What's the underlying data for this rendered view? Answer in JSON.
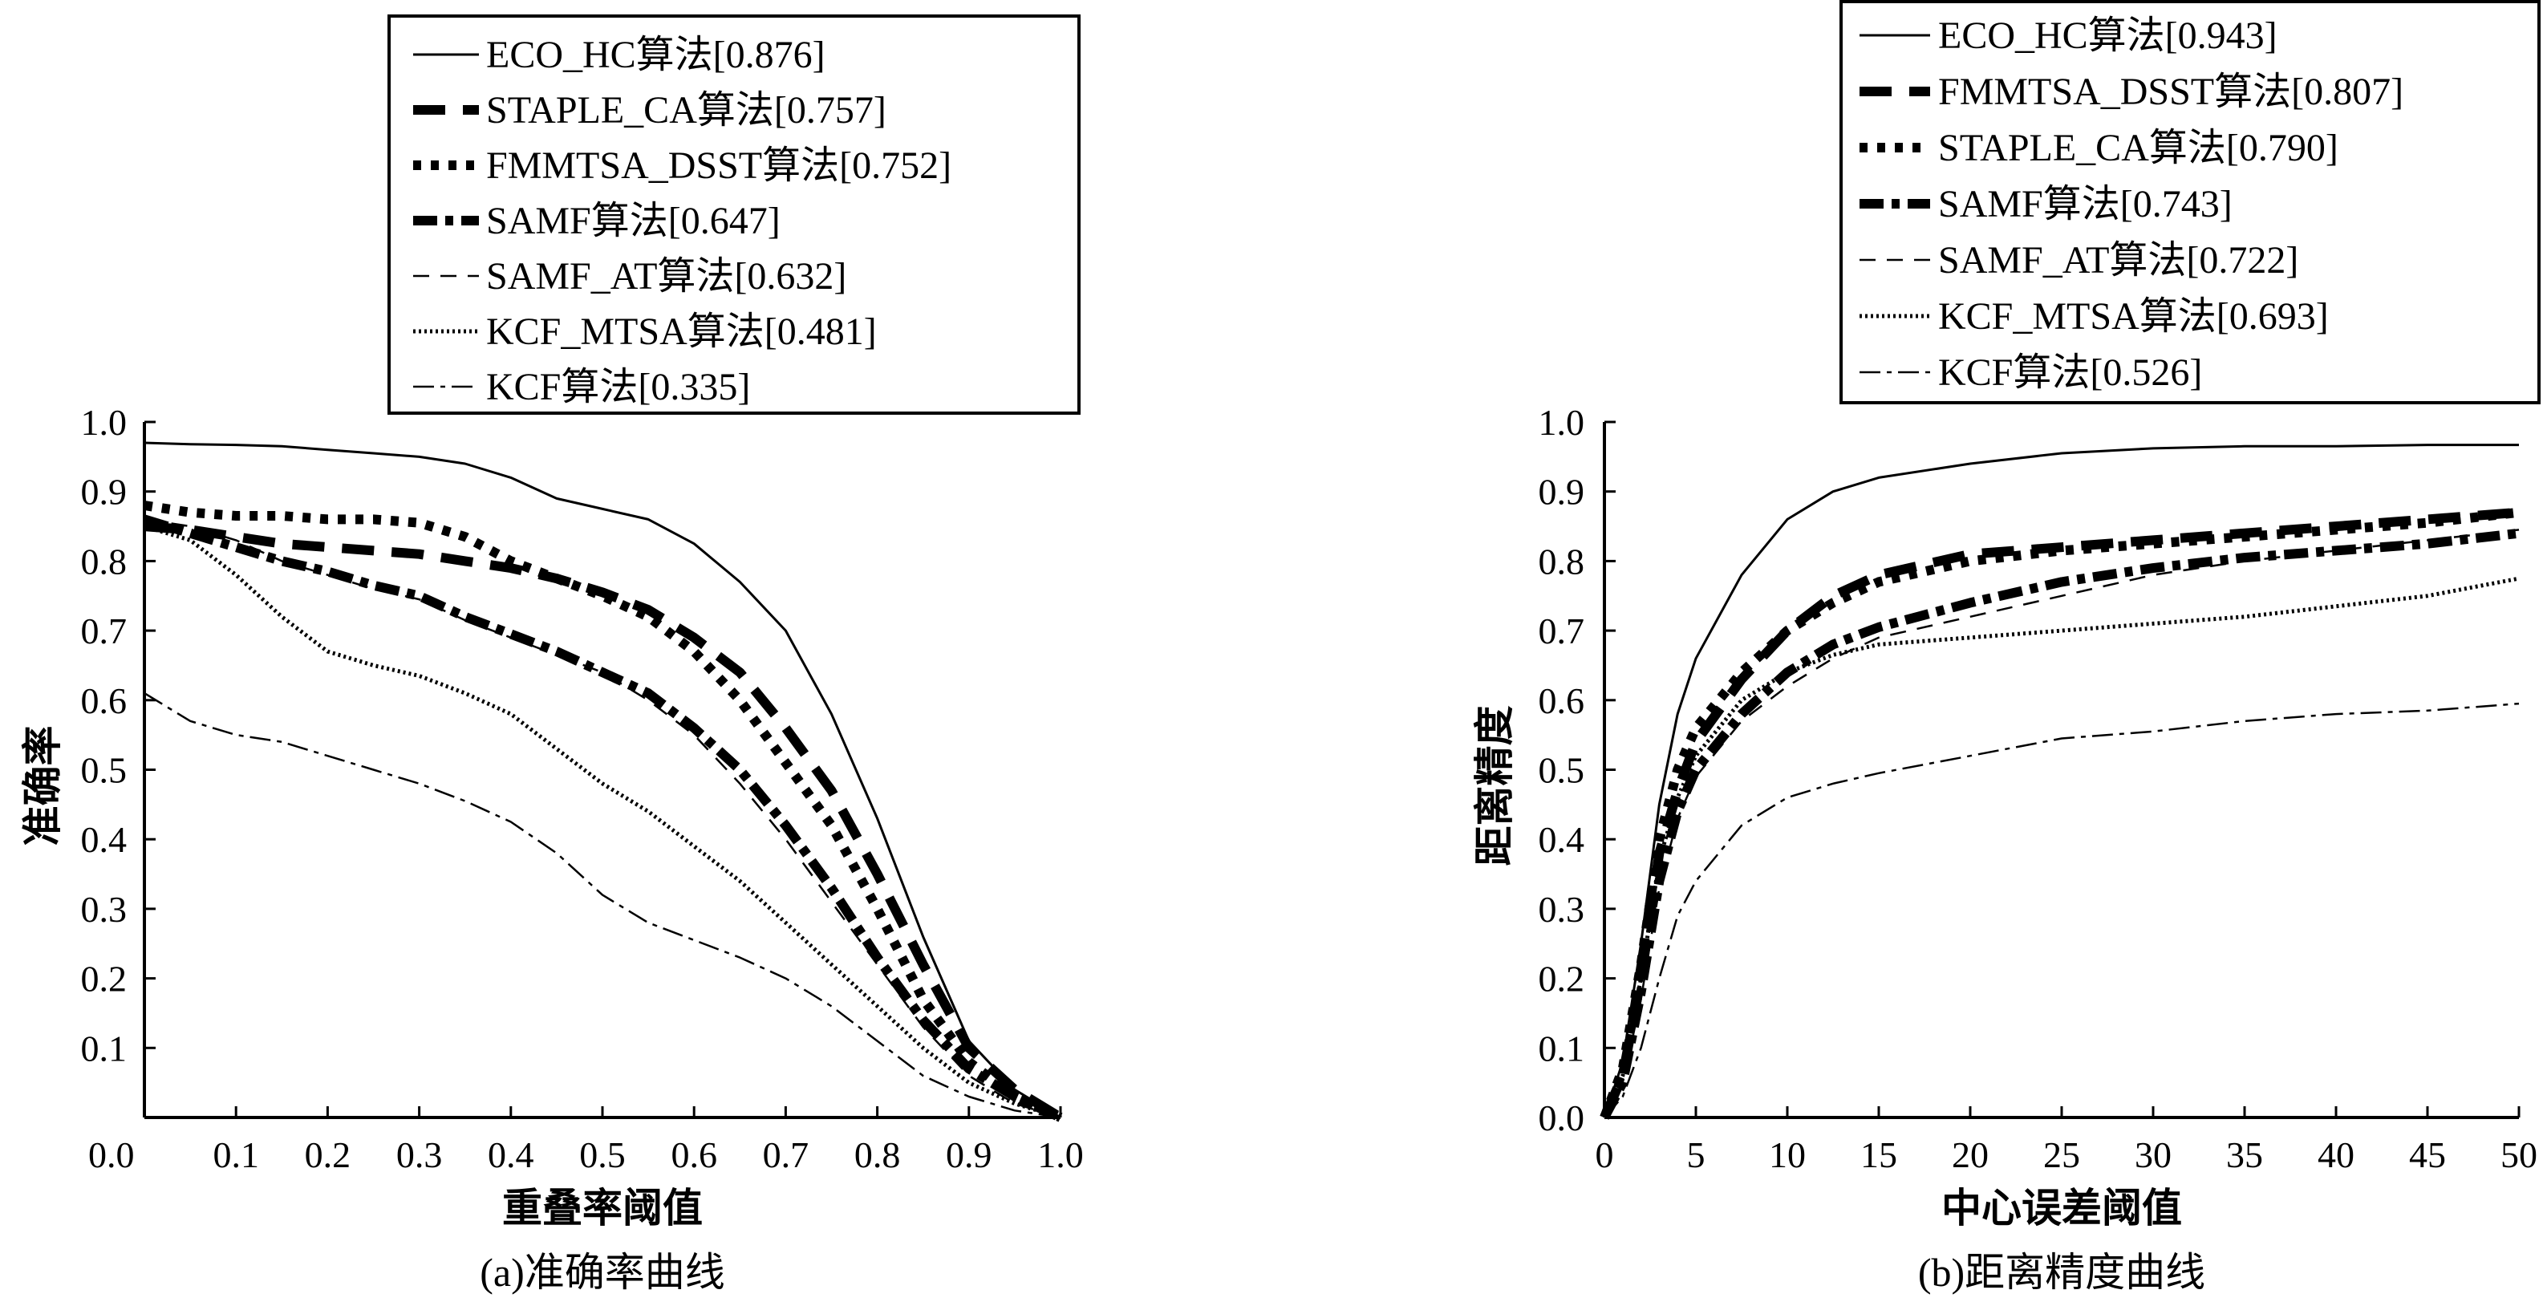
{
  "chart_data": [
    {
      "type": "line",
      "caption": "(a)准确率曲线",
      "xlabel": "重叠率阈值",
      "ylabel": "准确率",
      "xlim": [
        0,
        1.0
      ],
      "ylim": [
        0,
        1.0
      ],
      "xticks": [
        "0.0",
        "0.1",
        "0.2",
        "0.3",
        "0.4",
        "0.5",
        "0.6",
        "0.7",
        "0.8",
        "0.9",
        "1.0"
      ],
      "yticks": [
        "0.1",
        "0.2",
        "0.3",
        "0.4",
        "0.5",
        "0.6",
        "0.7",
        "0.8",
        "0.9",
        "1.0"
      ],
      "grid": false,
      "legend_position": "top-right",
      "x": [
        0,
        0.05,
        0.1,
        0.15,
        0.2,
        0.25,
        0.3,
        0.35,
        0.4,
        0.45,
        0.5,
        0.55,
        0.6,
        0.65,
        0.7,
        0.75,
        0.8,
        0.85,
        0.9,
        0.95,
        1.0
      ],
      "series": [
        {
          "name": "ECO_HC算法[0.876]",
          "values": [
            0.97,
            0.968,
            0.967,
            0.965,
            0.96,
            0.955,
            0.95,
            0.94,
            0.92,
            0.89,
            0.875,
            0.86,
            0.825,
            0.77,
            0.7,
            0.58,
            0.43,
            0.26,
            0.11,
            0.04,
            0.0
          ]
        },
        {
          "name": "STAPLE_CA算法[0.757]",
          "values": [
            0.85,
            0.845,
            0.835,
            0.825,
            0.82,
            0.815,
            0.81,
            0.8,
            0.79,
            0.775,
            0.755,
            0.73,
            0.69,
            0.64,
            0.56,
            0.47,
            0.35,
            0.22,
            0.1,
            0.04,
            0.0
          ]
        },
        {
          "name": "FMMTSA_DSST算法[0.752]",
          "values": [
            0.88,
            0.87,
            0.865,
            0.865,
            0.86,
            0.86,
            0.855,
            0.835,
            0.8,
            0.775,
            0.75,
            0.72,
            0.67,
            0.6,
            0.51,
            0.42,
            0.3,
            0.17,
            0.08,
            0.03,
            0.0
          ]
        },
        {
          "name": "SAMF算法[0.647]",
          "values": [
            0.86,
            0.84,
            0.82,
            0.8,
            0.785,
            0.765,
            0.75,
            0.72,
            0.695,
            0.67,
            0.64,
            0.61,
            0.56,
            0.5,
            0.42,
            0.33,
            0.23,
            0.14,
            0.07,
            0.03,
            0.0
          ]
        },
        {
          "name": "SAMF_AT算法[0.632]",
          "values": [
            0.86,
            0.85,
            0.83,
            0.8,
            0.78,
            0.76,
            0.745,
            0.715,
            0.69,
            0.665,
            0.64,
            0.6,
            0.55,
            0.48,
            0.4,
            0.31,
            0.22,
            0.13,
            0.06,
            0.02,
            0.0
          ]
        },
        {
          "name": "KCF_MTSA算法[0.481]",
          "values": [
            0.85,
            0.83,
            0.78,
            0.72,
            0.67,
            0.65,
            0.635,
            0.61,
            0.58,
            0.53,
            0.48,
            0.44,
            0.39,
            0.34,
            0.28,
            0.22,
            0.16,
            0.1,
            0.05,
            0.02,
            0.0
          ]
        },
        {
          "name": "KCF算法[0.335]",
          "values": [
            0.61,
            0.57,
            0.55,
            0.54,
            0.52,
            0.5,
            0.48,
            0.455,
            0.425,
            0.38,
            0.32,
            0.28,
            0.255,
            0.23,
            0.2,
            0.16,
            0.11,
            0.06,
            0.03,
            0.01,
            0.0
          ]
        }
      ]
    },
    {
      "type": "line",
      "caption": "(b)距离精度曲线",
      "xlabel": "中心误差阈值",
      "ylabel": "距离精度",
      "xlim": [
        0,
        50
      ],
      "ylim": [
        0,
        1.0
      ],
      "xticks": [
        "0",
        "5",
        "10",
        "15",
        "20",
        "25",
        "30",
        "35",
        "40",
        "45",
        "50"
      ],
      "yticks": [
        "0.0",
        "0.1",
        "0.2",
        "0.3",
        "0.4",
        "0.5",
        "0.6",
        "0.7",
        "0.8",
        "0.9",
        "1.0"
      ],
      "grid": false,
      "legend_position": "top-right",
      "x": [
        0,
        1,
        2,
        3,
        4,
        5,
        7.5,
        10,
        12.5,
        15,
        20,
        25,
        30,
        35,
        40,
        45,
        50
      ],
      "series": [
        {
          "name": "ECO_HC算法[0.943]",
          "values": [
            0,
            0.08,
            0.25,
            0.45,
            0.58,
            0.66,
            0.78,
            0.86,
            0.9,
            0.92,
            0.94,
            0.955,
            0.962,
            0.965,
            0.965,
            0.967,
            0.967
          ]
        },
        {
          "name": "FMMTSA_DSST算法[0.807]",
          "values": [
            0,
            0.06,
            0.2,
            0.38,
            0.47,
            0.54,
            0.63,
            0.7,
            0.75,
            0.78,
            0.81,
            0.82,
            0.83,
            0.84,
            0.85,
            0.86,
            0.87
          ]
        },
        {
          "name": "STAPLE_CA算法[0.790]",
          "values": [
            0,
            0.07,
            0.22,
            0.4,
            0.5,
            0.56,
            0.64,
            0.7,
            0.74,
            0.77,
            0.8,
            0.815,
            0.825,
            0.835,
            0.845,
            0.855,
            0.87
          ]
        },
        {
          "name": "SAMF算法[0.743]",
          "values": [
            0,
            0.05,
            0.18,
            0.34,
            0.44,
            0.5,
            0.58,
            0.64,
            0.68,
            0.705,
            0.74,
            0.77,
            0.79,
            0.805,
            0.815,
            0.825,
            0.84
          ]
        },
        {
          "name": "SAMF_AT算法[0.722]",
          "values": [
            0,
            0.05,
            0.17,
            0.33,
            0.43,
            0.49,
            0.57,
            0.62,
            0.66,
            0.69,
            0.72,
            0.75,
            0.78,
            0.8,
            0.815,
            0.83,
            0.845
          ]
        },
        {
          "name": "KCF_MTSA算法[0.693]",
          "values": [
            0,
            0.06,
            0.2,
            0.37,
            0.46,
            0.52,
            0.6,
            0.64,
            0.665,
            0.68,
            0.69,
            0.7,
            0.71,
            0.72,
            0.735,
            0.75,
            0.775
          ]
        },
        {
          "name": "KCF算法[0.526]",
          "values": [
            0,
            0.03,
            0.1,
            0.2,
            0.29,
            0.34,
            0.42,
            0.46,
            0.48,
            0.495,
            0.52,
            0.545,
            0.555,
            0.57,
            0.58,
            0.585,
            0.595
          ]
        }
      ]
    }
  ]
}
